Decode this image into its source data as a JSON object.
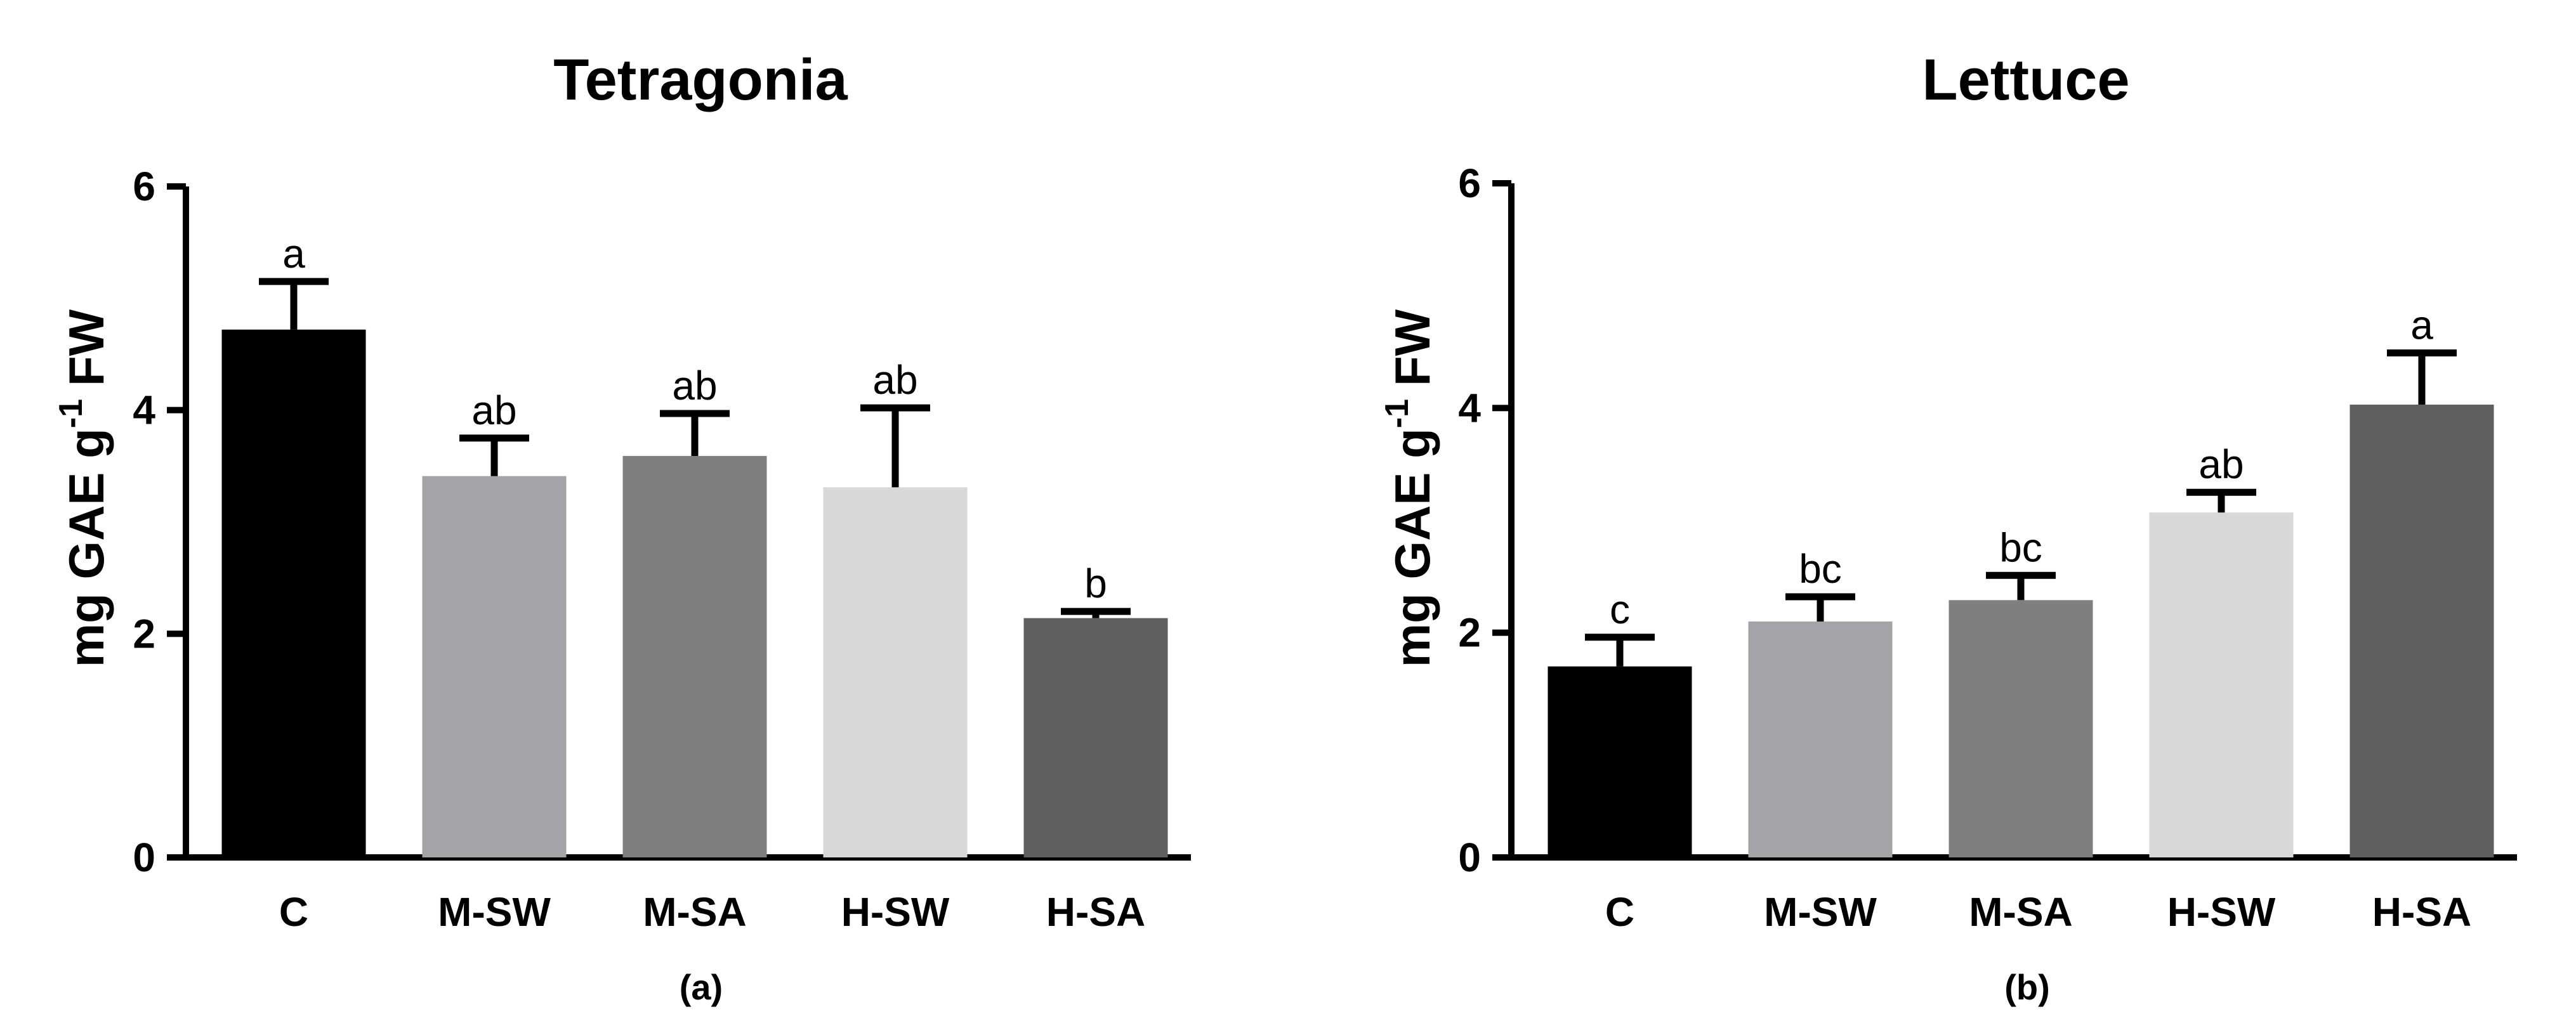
{
  "colors": {
    "C": "#000000",
    "M-SW": "#a4a4a8",
    "M-SA": "#7f7f7f",
    "H-SW": "#d8d8d8",
    "H-SA": "#5e5e5e"
  },
  "chart_data": [
    {
      "type": "bar",
      "title": "Tetragonia",
      "panel_label": "(a)",
      "ylabel": "mg GAE g",
      "ylabel_sup": "-1",
      "ylabel_unit": "FW",
      "xlabel": "",
      "ylim": [
        0,
        6
      ],
      "yticks": [
        0,
        2,
        4,
        6
      ],
      "categories": [
        "C",
        "M-SW",
        "M-SA",
        "H-SW",
        "H-SA"
      ],
      "values": [
        4.72,
        3.41,
        3.59,
        3.31,
        2.14
      ],
      "errors": [
        0.43,
        0.34,
        0.38,
        0.71,
        0.06
      ],
      "significance": [
        "a",
        "ab",
        "ab",
        "ab",
        "b"
      ],
      "grid": false
    },
    {
      "type": "bar",
      "title": "Lettuce",
      "panel_label": "(b)",
      "ylabel": "mg GAE g",
      "ylabel_sup": "-1",
      "ylabel_unit": "FW",
      "xlabel": "",
      "ylim": [
        0,
        6
      ],
      "yticks": [
        0,
        2,
        4,
        6
      ],
      "categories": [
        "C",
        "M-SW",
        "M-SA",
        "H-SW",
        "H-SA"
      ],
      "values": [
        1.7,
        2.1,
        2.29,
        3.07,
        4.03
      ],
      "errors": [
        0.26,
        0.22,
        0.22,
        0.18,
        0.46
      ],
      "significance": [
        "c",
        "bc",
        "bc",
        "ab",
        "a"
      ],
      "grid": false
    }
  ]
}
